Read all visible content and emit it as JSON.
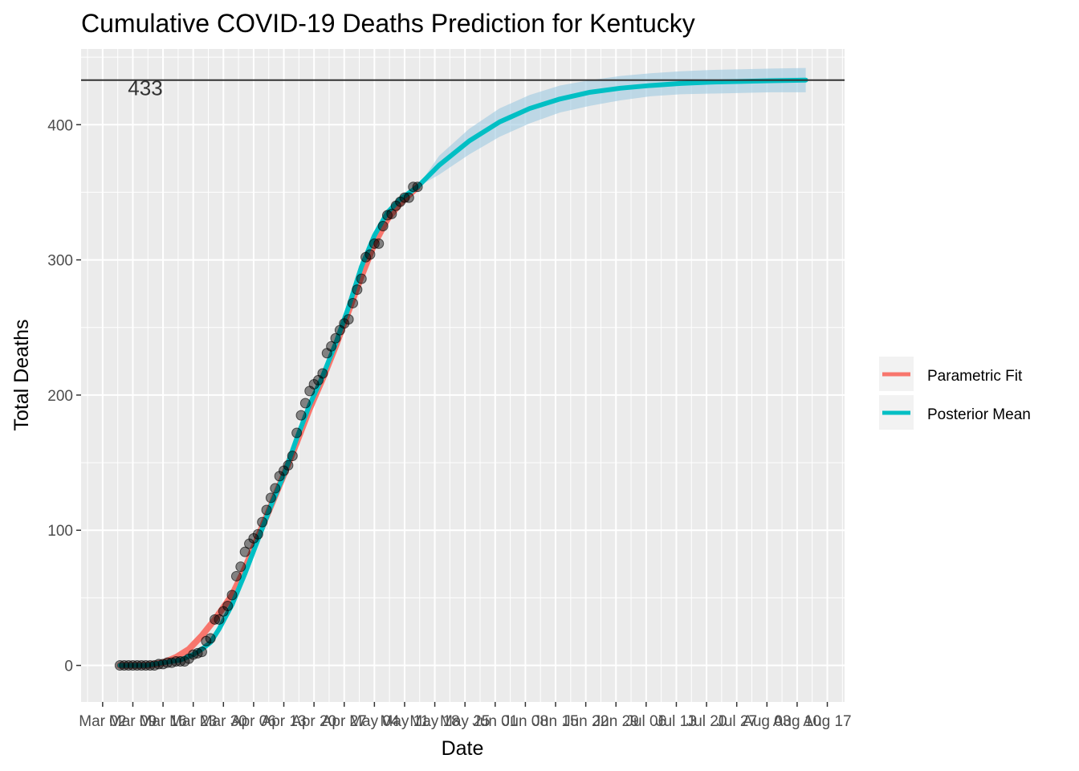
{
  "chart_data": {
    "type": "line",
    "title": "Cumulative COVID-19 Deaths Prediction for Kentucky",
    "xlabel": "Date",
    "ylabel": "Total Deaths",
    "ylim": [
      -27,
      456
    ],
    "yticks": [
      0,
      100,
      200,
      300,
      400
    ],
    "grid": true,
    "legend_position": "right",
    "x_tick_labels": [
      "Mar 02",
      "Mar 09",
      "Mar 16",
      "Mar 23",
      "Mar 30",
      "Apr 06",
      "Apr 13",
      "Apr 20",
      "Apr 27",
      "May 04",
      "May 11",
      "May 18",
      "May 25",
      "Jun 01",
      "Jun 08",
      "Jun 15",
      "Jun 22",
      "Jun 29",
      "Jul 06",
      "Jul 13",
      "Jul 20",
      "Jul 27",
      "Aug 03",
      "Aug 10",
      "Aug 17"
    ],
    "hline": {
      "value": 433,
      "label": "433"
    },
    "series": [
      {
        "name": "Parametric Fit",
        "color": "#F8766D",
        "x": [
          "Mar 06",
          "Mar 12",
          "Mar 16",
          "Mar 19",
          "Mar 22",
          "Mar 25",
          "Mar 28",
          "Apr 01",
          "Apr 04",
          "Apr 07",
          "Apr 10",
          "Apr 13",
          "Apr 16",
          "Apr 19",
          "Apr 22",
          "Apr 25",
          "Apr 28",
          "May 01",
          "May 04",
          "May 07",
          "May 10",
          "May 14"
        ],
        "values": [
          0,
          0,
          2,
          6,
          12,
          22,
          34,
          52,
          72,
          95,
          118,
          141,
          165,
          190,
          212,
          236,
          262,
          288,
          312,
          330,
          342,
          354
        ]
      },
      {
        "name": "Posterior Mean",
        "color": "#00BFC4",
        "x": [
          "Mar 06",
          "Mar 12",
          "Mar 16",
          "Mar 20",
          "Mar 23",
          "Mar 25",
          "Mar 27",
          "Mar 29",
          "Apr 01",
          "Apr 04",
          "Apr 07",
          "Apr 10",
          "Apr 13",
          "Apr 16",
          "Apr 19",
          "Apr 22",
          "Apr 25",
          "Apr 28",
          "May 01",
          "May 04",
          "May 07",
          "May 10",
          "May 14",
          "May 19",
          "May 26",
          "Jun 02",
          "Jun 09",
          "Jun 16",
          "Jun 23",
          "Jun 30",
          "Jul 07",
          "Jul 14",
          "Jul 21",
          "Jul 28",
          "Aug 04",
          "Aug 12"
        ],
        "values": [
          0,
          0,
          2,
          4,
          8,
          12,
          17,
          27,
          45,
          68,
          93,
          118,
          141,
          168,
          193,
          214,
          238,
          265,
          295,
          318,
          335,
          345,
          354,
          370,
          388,
          402,
          412,
          419,
          424,
          427,
          429,
          430.5,
          431.5,
          432,
          432.5,
          433
        ]
      }
    ],
    "credible_band": {
      "color": "#9ECAE1",
      "x": [
        "May 14",
        "May 19",
        "May 26",
        "Jun 02",
        "Jun 09",
        "Jun 16",
        "Jun 23",
        "Jun 30",
        "Jul 07",
        "Jul 14",
        "Jul 21",
        "Jul 28",
        "Aug 04",
        "Aug 12"
      ],
      "lower": [
        354,
        363,
        378,
        391,
        401,
        409,
        414,
        418,
        421,
        422.5,
        423,
        423.5,
        424,
        424
      ],
      "upper": [
        354,
        377,
        397,
        412,
        422,
        429,
        433,
        436,
        438,
        439.5,
        440.5,
        441,
        441.5,
        442
      ]
    },
    "observed": {
      "x": [
        "Mar 06",
        "Mar 07",
        "Mar 08",
        "Mar 09",
        "Mar 10",
        "Mar 11",
        "Mar 12",
        "Mar 13",
        "Mar 14",
        "Mar 15",
        "Mar 16",
        "Mar 17",
        "Mar 18",
        "Mar 19",
        "Mar 20",
        "Mar 21",
        "Mar 22",
        "Mar 23",
        "Mar 24",
        "Mar 25",
        "Mar 26",
        "Mar 27",
        "Mar 28",
        "Mar 29",
        "Mar 30",
        "Mar 31",
        "Apr 01",
        "Apr 02",
        "Apr 03",
        "Apr 04",
        "Apr 05",
        "Apr 06",
        "Apr 07",
        "Apr 08",
        "Apr 09",
        "Apr 10",
        "Apr 11",
        "Apr 12",
        "Apr 13",
        "Apr 14",
        "Apr 15",
        "Apr 16",
        "Apr 17",
        "Apr 18",
        "Apr 19",
        "Apr 20",
        "Apr 21",
        "Apr 22",
        "Apr 23",
        "Apr 24",
        "Apr 25",
        "Apr 26",
        "Apr 27",
        "Apr 28",
        "Apr 29",
        "Apr 30",
        "May 01",
        "May 02",
        "May 03",
        "May 04",
        "May 05",
        "May 06",
        "May 07",
        "May 08",
        "May 09",
        "May 10",
        "May 11",
        "May 12",
        "May 13",
        "May 14"
      ],
      "values": [
        0,
        0,
        0,
        0,
        0,
        0,
        0,
        0,
        0,
        1,
        1,
        2,
        2,
        3,
        3,
        3,
        5,
        8,
        9,
        10,
        18,
        20,
        34,
        34,
        40,
        44,
        52,
        66,
        73,
        84,
        90,
        94,
        97,
        106,
        115,
        124,
        131,
        140,
        144,
        148,
        155,
        172,
        185,
        194,
        203,
        208,
        211,
        216,
        231,
        236,
        242,
        248,
        253,
        256,
        268,
        278,
        286,
        302,
        304,
        312,
        312,
        325,
        333,
        334,
        340,
        343,
        346,
        346,
        354,
        354
      ]
    }
  }
}
